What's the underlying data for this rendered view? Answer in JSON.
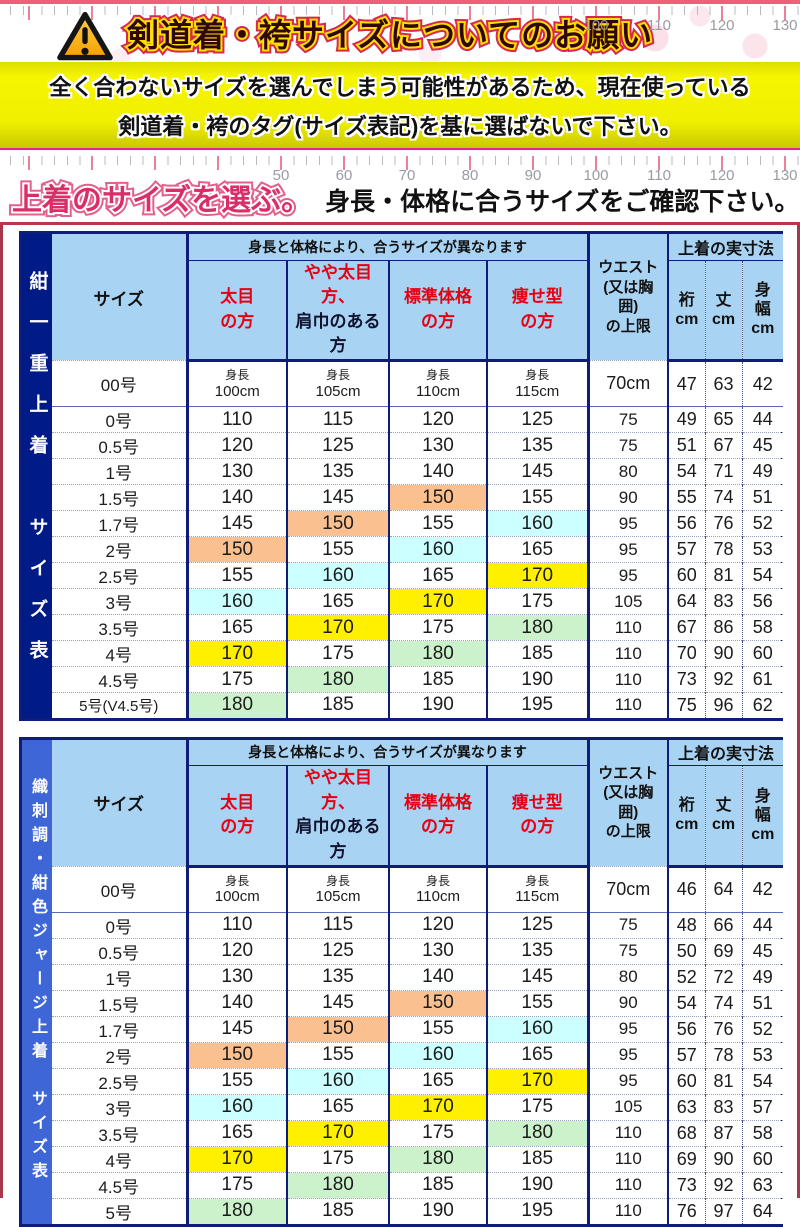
{
  "banner": {
    "title": "剣道着・袴サイズについてのお願い",
    "ruler_numbers": [
      "100",
      "110",
      "120",
      "130"
    ]
  },
  "notice": {
    "line1": "全く合わないサイズを選んでしまう可能性があるため、現在使っている",
    "line2": "剣道着・袴のタグ(サイズ表記)を基に選ばないで下さい。"
  },
  "section_header": {
    "badge": "上着のサイズを選ぶ。",
    "subtitle": "身長・体格に合うサイズをご確認下さい。",
    "ruler_numbers": [
      "50",
      "60",
      "70",
      "80",
      "90",
      "100",
      "110",
      "120",
      "130"
    ]
  },
  "table_template": {
    "span_header": "身長と体格により、合うサイズが異なります",
    "size_col_header": "サイズ",
    "type_columns": [
      {
        "lines": [
          "太目",
          "の方"
        ],
        "colors": [
          "red",
          "red"
        ]
      },
      {
        "lines": [
          "やや太目方、",
          "肩巾のある方"
        ],
        "colors": [
          "red",
          "black"
        ]
      },
      {
        "lines": [
          "標準体格",
          "の方"
        ],
        "colors": [
          "red",
          "red"
        ]
      },
      {
        "lines": [
          "痩せ型",
          "の方"
        ],
        "colors": [
          "red",
          "red"
        ]
      }
    ],
    "waist_header_lines": [
      "ウエスト",
      "(又は胸",
      "囲)",
      "の上限"
    ],
    "actual_size_header": "上着の実寸法",
    "measure_columns": [
      [
        "裄",
        "cm"
      ],
      [
        "丈",
        "cm"
      ],
      [
        "身",
        "幅",
        "cm"
      ]
    ],
    "height_label": "身長"
  },
  "colors": {
    "orange": "#FAC08F",
    "cyan": "#CCFFFF",
    "yellow": "#FFF000",
    "green": "#CCF2CC",
    "header_blue": "#A9D3F3",
    "navy": "#101d78",
    "bar1": "#001B86",
    "bar2": "#3E66D6",
    "red_header_text": "#E60012"
  },
  "tables": [
    {
      "side_label": "紺一重上着",
      "side_label2": "サイズ表",
      "rows": [
        {
          "size": "00号",
          "heights": [
            "100cm",
            "105cm",
            "110cm",
            "115cm"
          ],
          "first": true,
          "waist": "70cm",
          "measures": [
            "47",
            "63",
            "42"
          ],
          "hl": [
            "",
            "",
            "",
            ""
          ]
        },
        {
          "size": "0号",
          "heights": [
            "110",
            "115",
            "120",
            "125"
          ],
          "waist": "75",
          "measures": [
            "49",
            "65",
            "44"
          ],
          "hl": [
            "",
            "",
            "",
            ""
          ]
        },
        {
          "size": "0.5号",
          "heights": [
            "120",
            "125",
            "130",
            "135"
          ],
          "waist": "75",
          "measures": [
            "51",
            "67",
            "45"
          ],
          "hl": [
            "",
            "",
            "",
            ""
          ]
        },
        {
          "size": "1号",
          "heights": [
            "130",
            "135",
            "140",
            "145"
          ],
          "waist": "80",
          "measures": [
            "54",
            "71",
            "49"
          ],
          "hl": [
            "",
            "",
            "",
            ""
          ]
        },
        {
          "size": "1.5号",
          "heights": [
            "140",
            "145",
            "150",
            "155"
          ],
          "waist": "90",
          "measures": [
            "55",
            "74",
            "51"
          ],
          "hl": [
            "",
            "",
            "orange",
            ""
          ]
        },
        {
          "size": "1.7号",
          "heights": [
            "145",
            "150",
            "155",
            "160"
          ],
          "waist": "95",
          "measures": [
            "56",
            "76",
            "52"
          ],
          "hl": [
            "",
            "orange",
            "",
            "cyan"
          ]
        },
        {
          "size": "2号",
          "heights": [
            "150",
            "155",
            "160",
            "165"
          ],
          "waist": "95",
          "measures": [
            "57",
            "78",
            "53"
          ],
          "hl": [
            "orange",
            "",
            "cyan",
            ""
          ]
        },
        {
          "size": "2.5号",
          "heights": [
            "155",
            "160",
            "165",
            "170"
          ],
          "waist": "95",
          "measures": [
            "60",
            "81",
            "54"
          ],
          "hl": [
            "",
            "cyan",
            "",
            "yellow"
          ]
        },
        {
          "size": "3号",
          "heights": [
            "160",
            "165",
            "170",
            "175"
          ],
          "waist": "105",
          "measures": [
            "64",
            "83",
            "56"
          ],
          "hl": [
            "cyan",
            "",
            "yellow",
            ""
          ]
        },
        {
          "size": "3.5号",
          "heights": [
            "165",
            "170",
            "175",
            "180"
          ],
          "waist": "110",
          "measures": [
            "67",
            "86",
            "58"
          ],
          "hl": [
            "",
            "yellow",
            "",
            "green"
          ]
        },
        {
          "size": "4号",
          "heights": [
            "170",
            "175",
            "180",
            "185"
          ],
          "waist": "110",
          "measures": [
            "70",
            "90",
            "60"
          ],
          "hl": [
            "yellow",
            "",
            "green",
            ""
          ]
        },
        {
          "size": "4.5号",
          "heights": [
            "175",
            "180",
            "185",
            "190"
          ],
          "waist": "110",
          "measures": [
            "73",
            "92",
            "61"
          ],
          "hl": [
            "",
            "green",
            "",
            ""
          ]
        },
        {
          "size": "5号(V4.5号)",
          "heights": [
            "180",
            "185",
            "190",
            "195"
          ],
          "waist": "110",
          "measures": [
            "75",
            "96",
            "62"
          ],
          "hl": [
            "green",
            "",
            "",
            ""
          ]
        }
      ]
    },
    {
      "side_label": "織刺調・紺色ジャージ上着",
      "side_label2": "サイズ表",
      "rows": [
        {
          "size": "00号",
          "heights": [
            "100cm",
            "105cm",
            "110cm",
            "115cm"
          ],
          "first": true,
          "waist": "70cm",
          "measures": [
            "46",
            "64",
            "42"
          ],
          "hl": [
            "",
            "",
            "",
            ""
          ]
        },
        {
          "size": "0号",
          "heights": [
            "110",
            "115",
            "120",
            "125"
          ],
          "waist": "75",
          "measures": [
            "48",
            "66",
            "44"
          ],
          "hl": [
            "",
            "",
            "",
            ""
          ]
        },
        {
          "size": "0.5号",
          "heights": [
            "120",
            "125",
            "130",
            "135"
          ],
          "waist": "75",
          "measures": [
            "50",
            "69",
            "45"
          ],
          "hl": [
            "",
            "",
            "",
            ""
          ]
        },
        {
          "size": "1号",
          "heights": [
            "130",
            "135",
            "140",
            "145"
          ],
          "waist": "80",
          "measures": [
            "52",
            "72",
            "49"
          ],
          "hl": [
            "",
            "",
            "",
            ""
          ]
        },
        {
          "size": "1.5号",
          "heights": [
            "140",
            "145",
            "150",
            "155"
          ],
          "waist": "90",
          "measures": [
            "54",
            "74",
            "51"
          ],
          "hl": [
            "",
            "",
            "orange",
            ""
          ]
        },
        {
          "size": "1.7号",
          "heights": [
            "145",
            "150",
            "155",
            "160"
          ],
          "waist": "95",
          "measures": [
            "56",
            "76",
            "52"
          ],
          "hl": [
            "",
            "orange",
            "",
            "cyan"
          ]
        },
        {
          "size": "2号",
          "heights": [
            "150",
            "155",
            "160",
            "165"
          ],
          "waist": "95",
          "measures": [
            "57",
            "78",
            "53"
          ],
          "hl": [
            "orange",
            "",
            "cyan",
            ""
          ]
        },
        {
          "size": "2.5号",
          "heights": [
            "155",
            "160",
            "165",
            "170"
          ],
          "waist": "95",
          "measures": [
            "60",
            "81",
            "54"
          ],
          "hl": [
            "",
            "cyan",
            "",
            "yellow"
          ]
        },
        {
          "size": "3号",
          "heights": [
            "160",
            "165",
            "170",
            "175"
          ],
          "waist": "105",
          "measures": [
            "63",
            "83",
            "57"
          ],
          "hl": [
            "cyan",
            "",
            "yellow",
            ""
          ]
        },
        {
          "size": "3.5号",
          "heights": [
            "165",
            "170",
            "175",
            "180"
          ],
          "waist": "110",
          "measures": [
            "68",
            "87",
            "58"
          ],
          "hl": [
            "",
            "yellow",
            "",
            "green"
          ]
        },
        {
          "size": "4号",
          "heights": [
            "170",
            "175",
            "180",
            "185"
          ],
          "waist": "110",
          "measures": [
            "69",
            "90",
            "60"
          ],
          "hl": [
            "yellow",
            "",
            "green",
            ""
          ]
        },
        {
          "size": "4.5号",
          "heights": [
            "175",
            "180",
            "185",
            "190"
          ],
          "waist": "110",
          "measures": [
            "73",
            "92",
            "63"
          ],
          "hl": [
            "",
            "green",
            "",
            ""
          ]
        },
        {
          "size": "5号",
          "heights": [
            "180",
            "185",
            "190",
            "195"
          ],
          "waist": "110",
          "measures": [
            "76",
            "97",
            "64"
          ],
          "hl": [
            "green",
            "",
            "",
            ""
          ]
        }
      ]
    }
  ]
}
